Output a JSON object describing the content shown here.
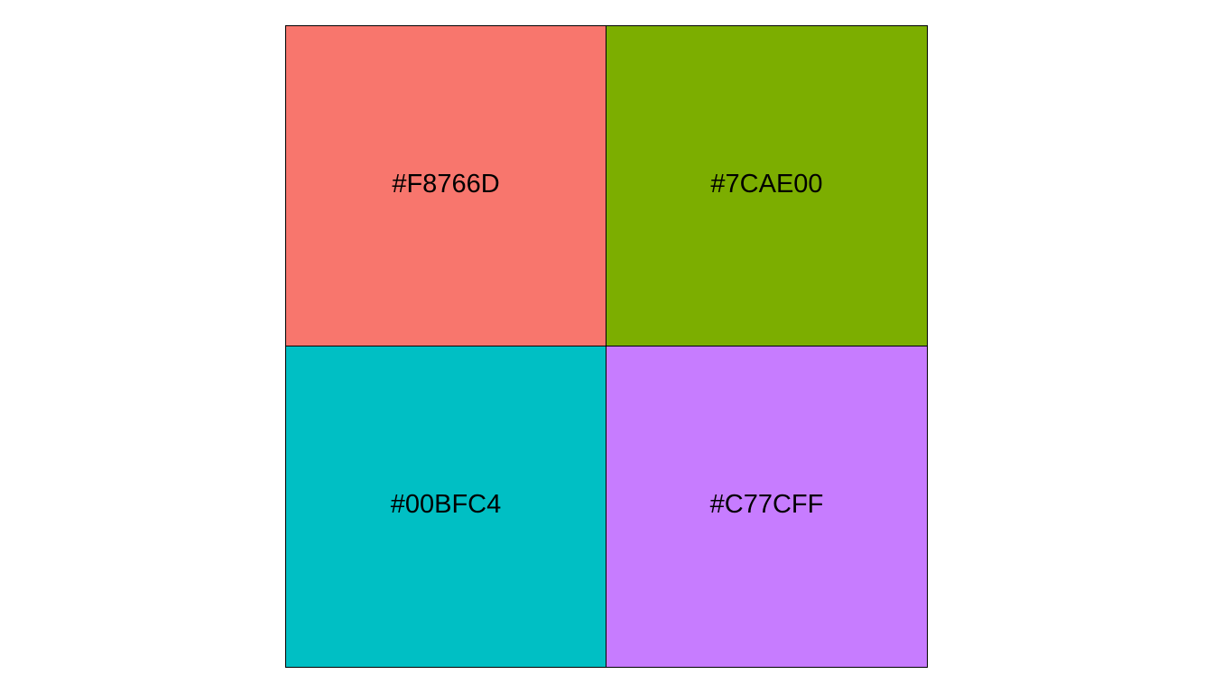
{
  "swatches": [
    {
      "label": "#F8766D",
      "color": "#F8766D"
    },
    {
      "label": "#7CAE00",
      "color": "#7CAE00"
    },
    {
      "label": "#00BFC4",
      "color": "#00BFC4"
    },
    {
      "label": "#C77CFF",
      "color": "#C77CFF"
    }
  ]
}
